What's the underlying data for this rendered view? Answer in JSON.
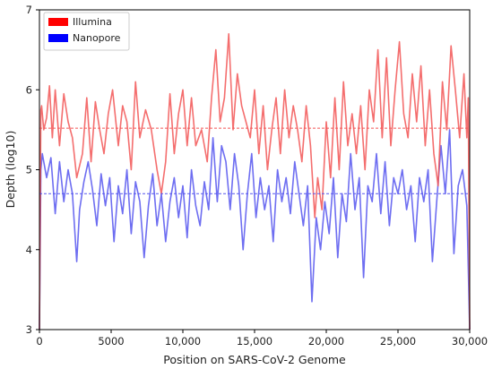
{
  "chart_data": {
    "type": "line",
    "xlabel": "Position on SARS-CoV-2 Genome",
    "ylabel": "Depth (log10)",
    "xlim": [
      0,
      30000
    ],
    "ylim": [
      3,
      7
    ],
    "x_ticks": [
      0,
      5000,
      10000,
      15000,
      20000,
      25000,
      30000
    ],
    "x_tick_labels": [
      "0",
      "5000",
      "10,000",
      "15,000",
      "20,000",
      "25,000",
      "30,000"
    ],
    "y_ticks": [
      3,
      4,
      5,
      6,
      7
    ],
    "y_tick_labels": [
      "3",
      "4",
      "5",
      "6",
      "7"
    ],
    "legend": {
      "position": "top-left",
      "entries": [
        "Illumina",
        "Nanopore"
      ]
    },
    "series": [
      {
        "name": "Illumina",
        "color": "#f25555",
        "mean": 5.52,
        "x": [
          0,
          100,
          150,
          300,
          500,
          700,
          900,
          1100,
          1400,
          1700,
          2000,
          2300,
          2600,
          3000,
          3300,
          3600,
          3900,
          4200,
          4500,
          4800,
          5100,
          5500,
          5800,
          6100,
          6400,
          6700,
          7000,
          7400,
          7800,
          8200,
          8500,
          8800,
          9100,
          9400,
          9700,
          10000,
          10300,
          10600,
          10900,
          11300,
          11700,
          12000,
          12300,
          12600,
          12900,
          13200,
          13500,
          13800,
          14100,
          14400,
          14700,
          15000,
          15300,
          15600,
          15900,
          16200,
          16500,
          16800,
          17100,
          17400,
          17700,
          18000,
          18300,
          18600,
          18900,
          19200,
          19400,
          19700,
          20000,
          20300,
          20600,
          20900,
          21200,
          21500,
          21800,
          22100,
          22400,
          22700,
          23000,
          23300,
          23600,
          23900,
          24200,
          24500,
          24800,
          25100,
          25400,
          25700,
          26000,
          26300,
          26600,
          26900,
          27200,
          27500,
          27800,
          28100,
          28400,
          28700,
          29000,
          29300,
          29600,
          29800,
          29900,
          30000
        ],
        "y": [
          3.0,
          5.75,
          5.8,
          5.5,
          5.65,
          6.05,
          5.4,
          6.0,
          5.3,
          5.95,
          5.6,
          5.4,
          4.9,
          5.2,
          5.9,
          5.1,
          5.85,
          5.5,
          5.2,
          5.7,
          6.0,
          5.3,
          5.8,
          5.6,
          5.0,
          6.1,
          5.4,
          5.75,
          5.5,
          5.0,
          4.7,
          5.1,
          5.95,
          5.2,
          5.7,
          6.0,
          5.3,
          5.9,
          5.3,
          5.5,
          5.1,
          5.9,
          6.5,
          5.6,
          5.9,
          6.7,
          5.5,
          6.2,
          5.8,
          5.6,
          5.4,
          6.0,
          5.2,
          5.8,
          5.0,
          5.5,
          5.9,
          5.2,
          6.0,
          5.4,
          5.8,
          5.5,
          5.1,
          5.8,
          5.3,
          4.4,
          4.9,
          4.5,
          5.6,
          4.9,
          5.9,
          5.0,
          6.1,
          5.3,
          5.7,
          5.2,
          5.8,
          5.0,
          6.0,
          5.6,
          6.5,
          5.4,
          6.4,
          5.3,
          6.0,
          6.6,
          5.7,
          5.4,
          6.2,
          5.6,
          6.3,
          5.3,
          6.0,
          5.2,
          4.8,
          6.1,
          5.5,
          6.55,
          6.0,
          5.4,
          6.2,
          5.4,
          5.9,
          3.0
        ]
      },
      {
        "name": "Nanopore",
        "color": "#5555ee",
        "mean": 4.7,
        "x": [
          0,
          100,
          200,
          500,
          800,
          1100,
          1400,
          1700,
          2000,
          2300,
          2600,
          2800,
          3100,
          3400,
          3700,
          4000,
          4300,
          4600,
          4900,
          5200,
          5500,
          5800,
          6100,
          6400,
          6700,
          7000,
          7300,
          7600,
          7900,
          8200,
          8500,
          8800,
          9100,
          9400,
          9700,
          10000,
          10300,
          10600,
          10900,
          11200,
          11500,
          11800,
          12100,
          12400,
          12700,
          13000,
          13300,
          13600,
          13900,
          14200,
          14500,
          14800,
          15100,
          15400,
          15700,
          16000,
          16300,
          16600,
          16900,
          17200,
          17500,
          17800,
          18100,
          18400,
          18700,
          19000,
          19300,
          19600,
          19900,
          20200,
          20500,
          20800,
          21100,
          21400,
          21700,
          22000,
          22300,
          22600,
          22900,
          23200,
          23500,
          23800,
          24100,
          24400,
          24700,
          25000,
          25300,
          25600,
          25900,
          26200,
          26500,
          26800,
          27100,
          27400,
          27700,
          28000,
          28300,
          28600,
          28900,
          29200,
          29500,
          29800,
          30000
        ],
        "y": [
          3.0,
          5.0,
          5.2,
          4.9,
          5.15,
          4.45,
          5.1,
          4.6,
          5.0,
          4.7,
          3.85,
          4.5,
          4.85,
          5.1,
          4.75,
          4.3,
          4.95,
          4.55,
          4.9,
          4.1,
          4.8,
          4.45,
          5.0,
          4.2,
          4.85,
          4.6,
          3.9,
          4.55,
          4.95,
          4.3,
          4.7,
          4.1,
          4.6,
          4.9,
          4.4,
          4.8,
          4.15,
          5.0,
          4.55,
          4.3,
          4.85,
          4.5,
          5.4,
          4.6,
          5.3,
          5.1,
          4.5,
          5.2,
          4.8,
          4.0,
          4.7,
          5.2,
          4.4,
          4.9,
          4.5,
          4.8,
          4.1,
          5.0,
          4.6,
          4.9,
          4.45,
          5.1,
          4.7,
          4.3,
          4.8,
          3.35,
          4.4,
          4.0,
          4.6,
          4.2,
          4.9,
          3.9,
          4.7,
          4.35,
          5.2,
          4.5,
          4.9,
          3.65,
          4.8,
          4.6,
          5.2,
          4.45,
          5.1,
          4.3,
          4.9,
          4.7,
          5.0,
          4.5,
          4.8,
          4.1,
          4.9,
          4.6,
          5.0,
          3.85,
          4.6,
          5.3,
          4.7,
          5.5,
          3.95,
          4.8,
          5.0,
          4.55,
          3.0
        ]
      }
    ]
  }
}
